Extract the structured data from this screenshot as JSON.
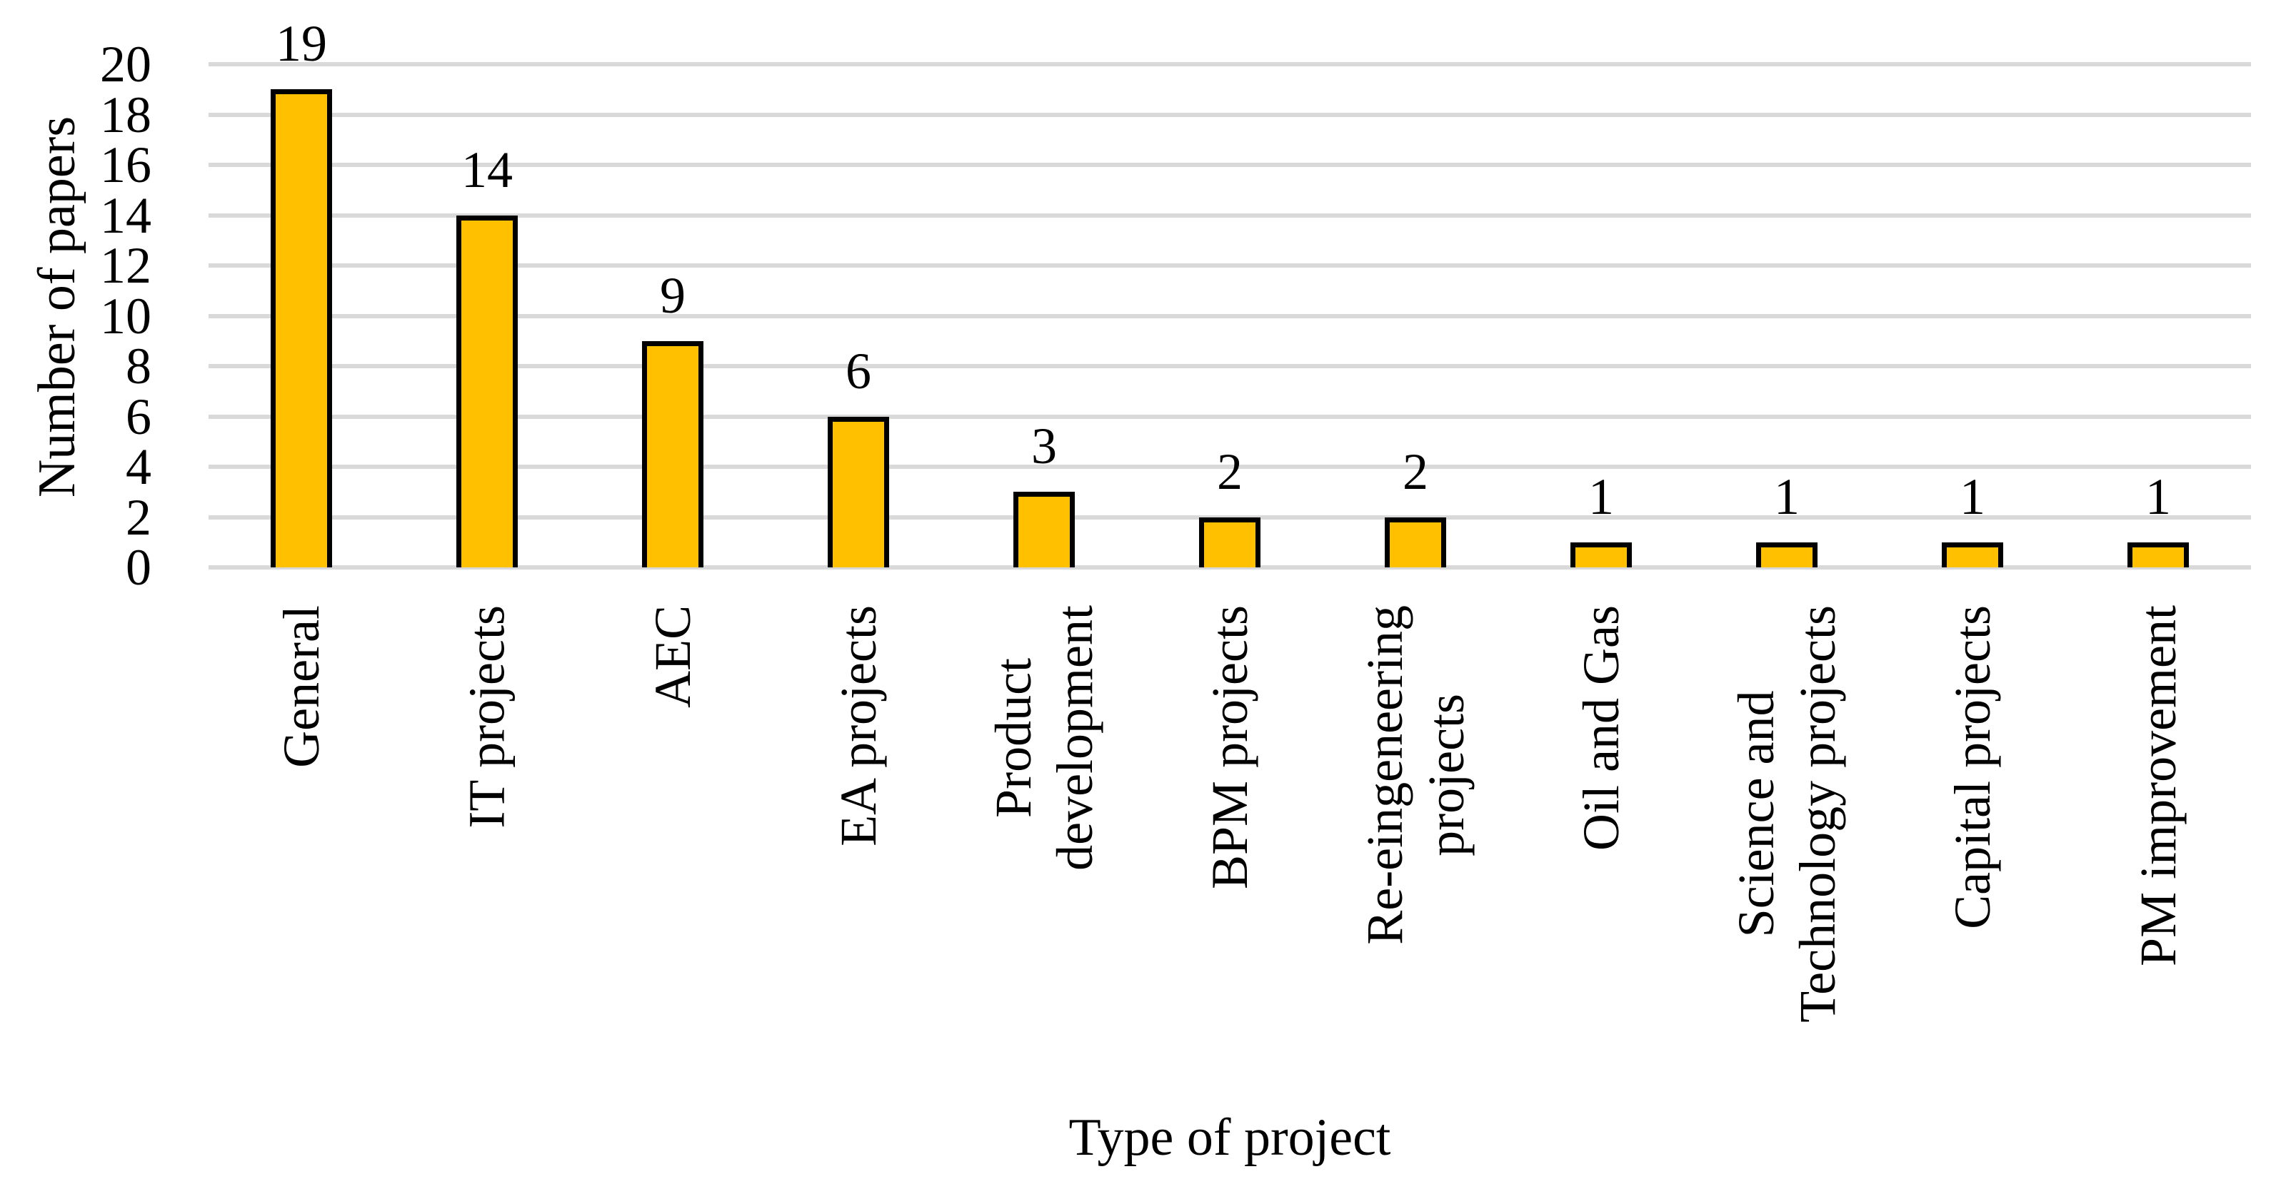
{
  "figure": {
    "background": "#FFFFFF"
  },
  "chart_data": {
    "type": "bar",
    "title": "",
    "xlabel": "Type of project",
    "ylabel": "Number of papers",
    "categories": [
      "General",
      "IT projects",
      "AEC",
      "EA projects",
      "Product\ndevelopment",
      "BPM projects",
      "Re-eingeneering\nprojects",
      "Oil and Gas",
      "Science and\nTechnology projects",
      "Capital projects",
      "PM improvement"
    ],
    "values": [
      19,
      14,
      9,
      6,
      3,
      2,
      2,
      1,
      1,
      1,
      1
    ],
    "data_labels": [
      "19",
      "14",
      "9",
      "6",
      "3",
      "2",
      "2",
      "1",
      "1",
      "1",
      "1"
    ],
    "yticks": [
      0,
      2,
      4,
      6,
      8,
      10,
      12,
      14,
      16,
      18,
      20
    ],
    "ylim": [
      0,
      20
    ],
    "grid": "horizontal",
    "legend_position": "none",
    "category_label_rotation_deg": 90,
    "colors": {
      "bar_fill": "#FFC000",
      "bar_border": "#000000",
      "gridline": "#D9D9D9",
      "text": "#000000"
    }
  }
}
